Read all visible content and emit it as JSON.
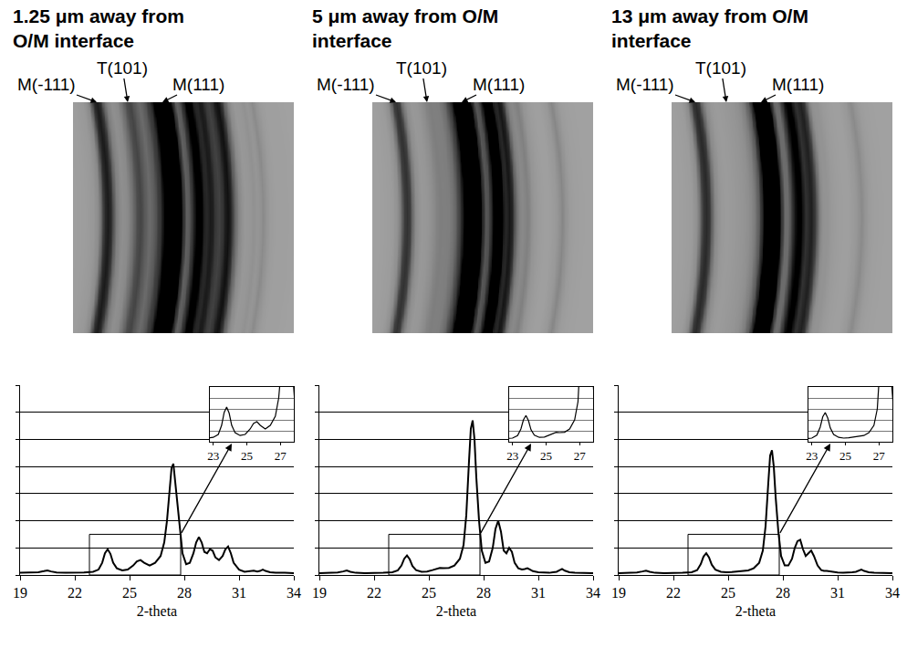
{
  "chart_data": [
    {
      "type": "line",
      "title": "1.25 μm away from O/M interface",
      "x_label": "2-theta",
      "x": [
        19,
        19.5,
        20,
        20.3,
        20.5,
        20.7,
        21,
        21.5,
        22,
        22.5,
        23,
        23.3,
        23.5,
        23.65,
        23.8,
        23.95,
        24.1,
        24.3,
        24.6,
        24.9,
        25.2,
        25.4,
        25.6,
        25.8,
        26.1,
        26.4,
        26.7,
        26.9,
        27.05,
        27.2,
        27.3,
        27.4,
        27.5,
        27.6,
        27.75,
        27.9,
        28.1,
        28.3,
        28.5,
        28.65,
        28.8,
        28.95,
        29.1,
        29.25,
        29.4,
        29.55,
        29.7,
        29.9,
        30.1,
        30.25,
        30.4,
        30.55,
        30.7,
        31,
        31.3,
        31.6,
        31.8,
        32,
        32.15,
        32.3,
        32.45,
        32.7,
        33,
        33.5,
        34
      ],
      "values": [
        0.08,
        0.08,
        0.1,
        0.14,
        0.17,
        0.13,
        0.09,
        0.08,
        0.08,
        0.09,
        0.12,
        0.2,
        0.45,
        0.8,
        0.95,
        0.78,
        0.45,
        0.25,
        0.17,
        0.2,
        0.35,
        0.5,
        0.55,
        0.45,
        0.35,
        0.45,
        0.7,
        1.2,
        2.0,
        3.3,
        3.95,
        4.1,
        3.4,
        2.7,
        1.7,
        0.8,
        0.4,
        0.45,
        0.8,
        1.2,
        1.4,
        1.2,
        0.85,
        0.8,
        0.95,
        0.9,
        0.65,
        0.55,
        0.7,
        0.95,
        1.05,
        0.8,
        0.45,
        0.2,
        0.12,
        0.13,
        0.16,
        0.13,
        0.15,
        0.2,
        0.15,
        0.1,
        0.08,
        0.08,
        0.07
      ],
      "color": "#000000",
      "xlim": [
        19,
        34
      ],
      "xticks": [
        19,
        22,
        25,
        28,
        31,
        34
      ],
      "ylim": [
        0,
        7
      ],
      "yticks": [
        0,
        1,
        2,
        3,
        4,
        5,
        6,
        7
      ],
      "grid": true,
      "tick_labels": "x",
      "peak_labels": [
        {
          "label": "M(-111)",
          "x": 23.8
        },
        {
          "label": "T(101)",
          "x": 25.5
        },
        {
          "label": "M(111)",
          "x": 27.4
        }
      ],
      "image": {
        "xlim": [
          21.9,
          34
        ]
      },
      "inset": {
        "xlim": [
          22.8,
          27.8
        ],
        "xticks": [
          23,
          25,
          27
        ],
        "ylim": [
          0,
          1.5
        ],
        "yticks": [
          0,
          0.3,
          0.6,
          0.9,
          1.2,
          1.5
        ],
        "tick_labels": "x"
      }
    },
    {
      "type": "line",
      "title": "5 μm away from O/M interface",
      "x_label": "2-theta",
      "x": [
        19,
        19.5,
        20,
        20.3,
        20.5,
        20.7,
        21,
        21.5,
        22,
        22.5,
        23,
        23.3,
        23.5,
        23.65,
        23.8,
        23.95,
        24.1,
        24.3,
        24.6,
        24.9,
        25.2,
        25.4,
        25.6,
        25.8,
        26.1,
        26.4,
        26.7,
        26.9,
        27.05,
        27.2,
        27.3,
        27.4,
        27.5,
        27.6,
        27.75,
        27.9,
        28.1,
        28.3,
        28.5,
        28.65,
        28.8,
        28.95,
        29.1,
        29.25,
        29.4,
        29.55,
        29.7,
        29.9,
        30.1,
        30.25,
        30.4,
        30.55,
        30.7,
        31,
        31.3,
        31.6,
        31.8,
        32,
        32.15,
        32.3,
        32.45,
        32.7,
        33,
        33.5,
        34
      ],
      "values": [
        0.07,
        0.07,
        0.09,
        0.13,
        0.17,
        0.12,
        0.08,
        0.07,
        0.07,
        0.08,
        0.1,
        0.17,
        0.35,
        0.6,
        0.72,
        0.58,
        0.33,
        0.18,
        0.12,
        0.13,
        0.18,
        0.23,
        0.26,
        0.25,
        0.26,
        0.35,
        0.6,
        1.1,
        2.2,
        4.2,
        5.4,
        5.7,
        5.0,
        3.6,
        2.0,
        0.9,
        0.45,
        0.5,
        1.0,
        1.7,
        2.0,
        1.6,
        0.9,
        0.8,
        1.0,
        0.85,
        0.45,
        0.25,
        0.2,
        0.22,
        0.25,
        0.2,
        0.14,
        0.1,
        0.08,
        0.08,
        0.1,
        0.12,
        0.17,
        0.22,
        0.16,
        0.1,
        0.08,
        0.07,
        0.07
      ],
      "color": "#000000",
      "xlim": [
        19,
        34
      ],
      "xticks": [
        19,
        22,
        25,
        28,
        31,
        34
      ],
      "ylim": [
        0,
        7
      ],
      "yticks": [
        0,
        1,
        2,
        3,
        4,
        5,
        6,
        7
      ],
      "grid": true,
      "tick_labels": "x",
      "peak_labels": [
        {
          "label": "M(-111)",
          "x": 23.8
        },
        {
          "label": "T(101)",
          "x": 25.5
        },
        {
          "label": "M(111)",
          "x": 27.4
        }
      ],
      "image": {
        "xlim": [
          21.9,
          34
        ]
      },
      "inset": {
        "xlim": [
          22.8,
          27.8
        ],
        "xticks": [
          23,
          25,
          27
        ],
        "ylim": [
          0,
          1.5
        ],
        "yticks": [
          0,
          0.3,
          0.6,
          0.9,
          1.2,
          1.5
        ],
        "tick_labels": "x"
      }
    },
    {
      "type": "line",
      "title": "13 μm away from O/M interface",
      "x_label": "2-theta",
      "x": [
        19,
        19.5,
        20,
        20.3,
        20.5,
        20.7,
        21,
        21.5,
        22,
        22.5,
        23,
        23.3,
        23.5,
        23.65,
        23.8,
        23.95,
        24.1,
        24.3,
        24.6,
        24.9,
        25.2,
        25.4,
        25.6,
        25.8,
        26.1,
        26.4,
        26.7,
        26.9,
        27.05,
        27.2,
        27.3,
        27.4,
        27.5,
        27.6,
        27.75,
        27.9,
        28.1,
        28.3,
        28.5,
        28.65,
        28.8,
        28.95,
        29.1,
        29.25,
        29.4,
        29.55,
        29.7,
        29.9,
        30.1,
        30.25,
        30.4,
        30.55,
        30.7,
        31,
        31.3,
        31.6,
        31.8,
        32,
        32.15,
        32.3,
        32.45,
        32.7,
        33,
        33.5,
        34
      ],
      "values": [
        0.07,
        0.07,
        0.09,
        0.13,
        0.16,
        0.12,
        0.08,
        0.07,
        0.07,
        0.08,
        0.1,
        0.18,
        0.4,
        0.68,
        0.8,
        0.65,
        0.38,
        0.2,
        0.12,
        0.1,
        0.11,
        0.12,
        0.13,
        0.14,
        0.17,
        0.25,
        0.45,
        0.9,
        1.8,
        3.4,
        4.4,
        4.6,
        4.0,
        2.9,
        1.6,
        0.7,
        0.35,
        0.35,
        0.6,
        1.0,
        1.25,
        1.3,
        0.95,
        0.7,
        0.8,
        0.9,
        0.7,
        0.35,
        0.18,
        0.15,
        0.15,
        0.13,
        0.11,
        0.09,
        0.08,
        0.08,
        0.1,
        0.12,
        0.16,
        0.2,
        0.15,
        0.1,
        0.08,
        0.07,
        0.07
      ],
      "color": "#000000",
      "xlim": [
        19,
        34
      ],
      "xticks": [
        19,
        22,
        25,
        28,
        31,
        34
      ],
      "ylim": [
        0,
        7
      ],
      "yticks": [
        0,
        1,
        2,
        3,
        4,
        5,
        6,
        7
      ],
      "grid": true,
      "tick_labels": "x",
      "peak_labels": [
        {
          "label": "M(-111)",
          "x": 23.8
        },
        {
          "label": "T(101)",
          "x": 25.5
        },
        {
          "label": "M(111)",
          "x": 27.4
        }
      ],
      "image": {
        "xlim": [
          21.9,
          34
        ]
      },
      "inset": {
        "xlim": [
          22.8,
          27.8
        ],
        "xticks": [
          23,
          25,
          27
        ],
        "ylim": [
          0,
          1.5
        ],
        "yticks": [
          0,
          0.3,
          0.6,
          0.9,
          1.2,
          1.5
        ],
        "tick_labels": "x"
      }
    }
  ]
}
